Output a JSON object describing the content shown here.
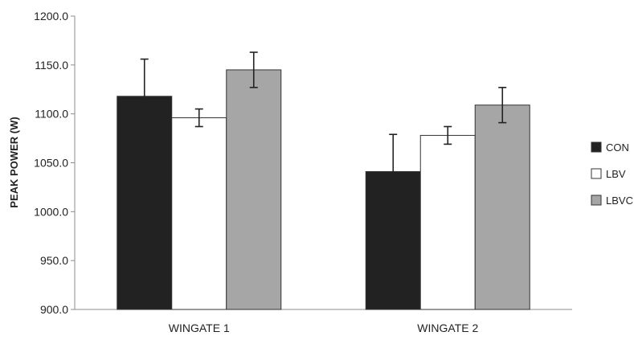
{
  "chart_data": {
    "type": "bar",
    "title": "",
    "xlabel": "",
    "ylabel": "PEAK POWER (W)",
    "ylim": [
      900,
      1200
    ],
    "yticks": [
      "900.0",
      "950.0",
      "1000.0",
      "1050.0",
      "1100.0",
      "1150.0",
      "1200.0"
    ],
    "grid": false,
    "legend_position": "right",
    "categories": [
      "WINGATE 1",
      "WINGATE 2"
    ],
    "series": [
      {
        "name": "CON",
        "values": [
          1118,
          1041
        ],
        "errors": [
          38,
          38
        ],
        "color": "#222222"
      },
      {
        "name": "LBV",
        "values": [
          1096,
          1078
        ],
        "errors": [
          9,
          9
        ],
        "color": "#ffffff"
      },
      {
        "name": "LBVC",
        "values": [
          1145,
          1109
        ],
        "errors": [
          18,
          18
        ],
        "color": "#a6a6a6"
      }
    ]
  }
}
